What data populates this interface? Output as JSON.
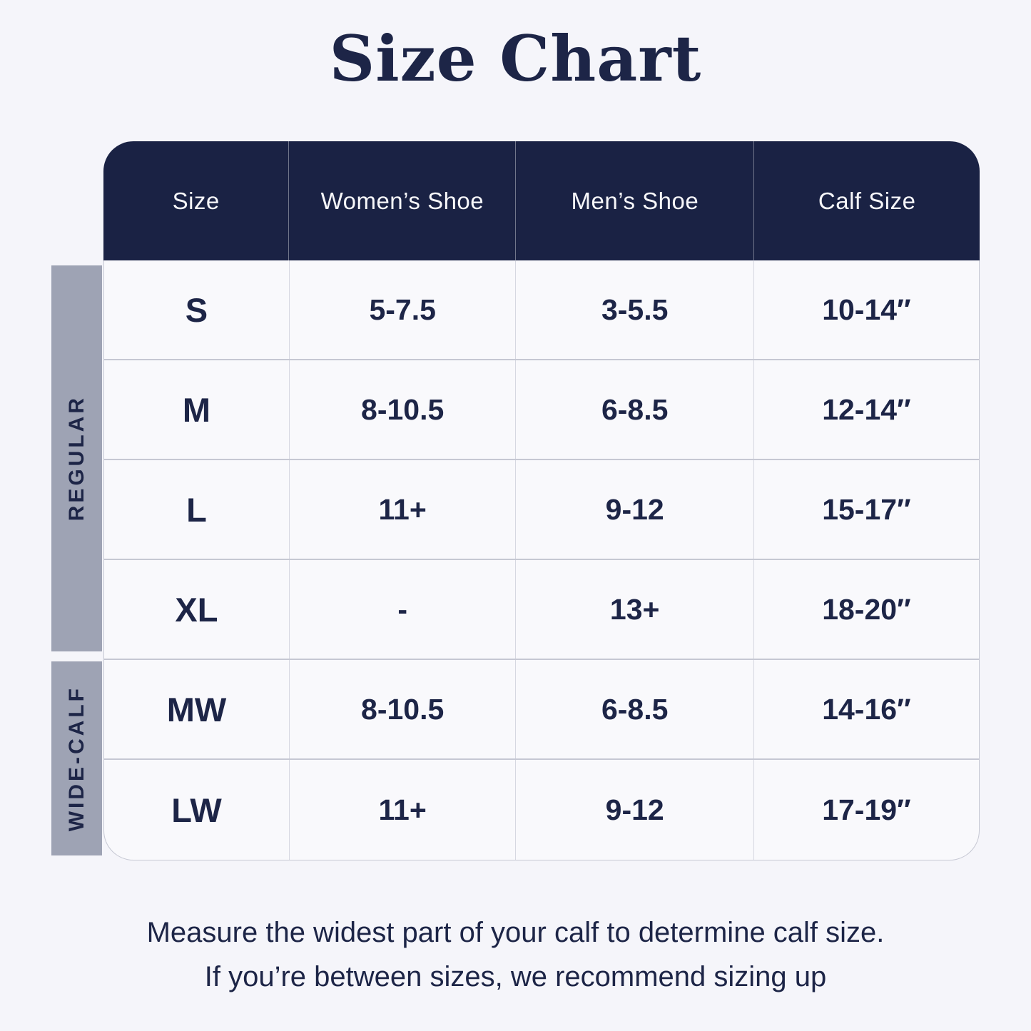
{
  "title": "Size Chart",
  "table": {
    "columns": [
      "Size",
      "Women’s Shoe",
      "Men’s Shoe",
      "Calf Size"
    ],
    "groups": [
      {
        "label": "REGULAR"
      },
      {
        "label": "WIDE-CALF"
      }
    ],
    "rows": [
      {
        "size": "S",
        "womens": "5-7.5",
        "mens": "3-5.5",
        "calf": "10-14″"
      },
      {
        "size": "M",
        "womens": "8-10.5",
        "mens": "6-8.5",
        "calf": "12-14″"
      },
      {
        "size": "L",
        "womens": "11+",
        "mens": "9-12",
        "calf": "15-17″"
      },
      {
        "size": "XL",
        "womens": "-",
        "mens": "13+",
        "calf": "18-20″"
      },
      {
        "size": "MW",
        "womens": "8-10.5",
        "mens": "6-8.5",
        "calf": "14-16″"
      },
      {
        "size": "LW",
        "womens": "11+",
        "mens": "9-12",
        "calf": "17-19″"
      }
    ]
  },
  "footer": {
    "line1": "Measure the widest part of your calf to determine calf size.",
    "line2": "If you’re between sizes, we recommend sizing up"
  },
  "colors": {
    "background": "#f5f5fa",
    "header_bg": "#1a2244",
    "header_text": "#f7f7fa",
    "text_navy": "#1d2547",
    "group_bar": "#9ea3b4",
    "cell_bg": "#f9f9fc",
    "border": "#c6c8d3",
    "border_light": "#d6d8e1"
  },
  "chart_data": {
    "type": "table",
    "title": "Size Chart",
    "columns": [
      "Size",
      "Women’s Shoe",
      "Men’s Shoe",
      "Calf Size"
    ],
    "row_groups": [
      {
        "group": "REGULAR",
        "sizes": [
          "S",
          "M",
          "L",
          "XL"
        ]
      },
      {
        "group": "WIDE-CALF",
        "sizes": [
          "MW",
          "LW"
        ]
      }
    ],
    "rows": [
      [
        "S",
        "5-7.5",
        "3-5.5",
        "10-14″"
      ],
      [
        "M",
        "8-10.5",
        "6-8.5",
        "12-14″"
      ],
      [
        "L",
        "11+",
        "9-12",
        "15-17″"
      ],
      [
        "XL",
        "-",
        "13+",
        "18-20″"
      ],
      [
        "MW",
        "8-10.5",
        "6-8.5",
        "14-16″"
      ],
      [
        "LW",
        "11+",
        "9-12",
        "17-19″"
      ]
    ],
    "note": "Measure the widest part of your calf to determine calf size. If you’re between sizes, we recommend sizing up"
  }
}
